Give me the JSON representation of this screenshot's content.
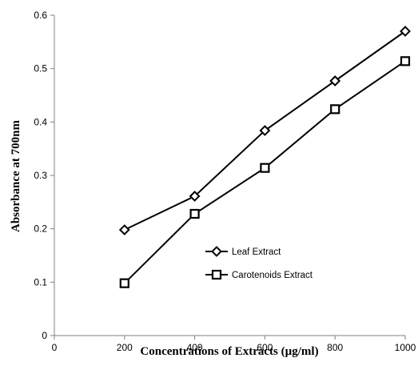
{
  "chart_data": {
    "type": "line",
    "xlabel": "Concentrations  of Extracts (µg/ml)",
    "ylabel": "Absorbance  at 700nm",
    "xlim": [
      0,
      1000
    ],
    "ylim": [
      0,
      0.6
    ],
    "x_ticks": [
      "0",
      "200",
      "400",
      "600",
      "800",
      "1000"
    ],
    "y_ticks": [
      "0",
      "0.1",
      "0.2",
      "0.3",
      "0.4",
      "0.5",
      "0.6"
    ],
    "x": [
      200,
      400,
      600,
      800,
      1000
    ],
    "series": [
      {
        "name": "Leaf Extract",
        "marker": "diamond",
        "values": [
          0.198,
          0.261,
          0.384,
          0.477,
          0.57
        ]
      },
      {
        "name": "Carotenoids Extract",
        "marker": "square",
        "values": [
          0.098,
          0.228,
          0.314,
          0.424,
          0.514
        ]
      }
    ],
    "grid": false,
    "legend_position": "inside-lower-right",
    "line_color": "#000000"
  }
}
